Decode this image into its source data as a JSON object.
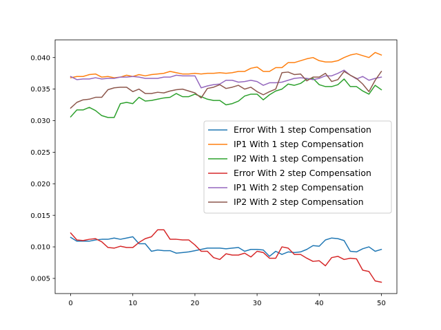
{
  "chart_data": {
    "type": "line",
    "title": "",
    "xlabel": "",
    "ylabel": "",
    "xlim": [
      -2.5,
      52.5
    ],
    "ylim": [
      0.0026,
      0.0428
    ],
    "xticks": [
      0,
      10,
      20,
      30,
      40,
      50
    ],
    "xtick_labels": [
      "0",
      "10",
      "20",
      "30",
      "40",
      "50"
    ],
    "yticks": [
      0.005,
      0.01,
      0.015,
      0.02,
      0.025,
      0.03,
      0.035,
      0.04
    ],
    "ytick_labels": [
      "0.005",
      "0.010",
      "0.015",
      "0.020",
      "0.025",
      "0.030",
      "0.035",
      "0.040"
    ],
    "grid": false,
    "legend_placement": "center-right",
    "x": [
      0,
      1,
      2,
      3,
      4,
      5,
      6,
      7,
      8,
      9,
      10,
      11,
      12,
      13,
      14,
      15,
      16,
      17,
      18,
      19,
      20,
      21,
      22,
      23,
      24,
      25,
      26,
      27,
      28,
      29,
      30,
      31,
      32,
      33,
      34,
      35,
      36,
      37,
      38,
      39,
      40,
      41,
      42,
      43,
      44,
      45,
      46,
      47,
      48,
      49,
      50
    ],
    "series": [
      {
        "name": "Error With 1 step Compensation",
        "color": "#1f77b4",
        "values": [
          0.0115,
          0.0109,
          0.0109,
          0.0109,
          0.0111,
          0.0112,
          0.0112,
          0.0114,
          0.0112,
          0.0114,
          0.0116,
          0.0105,
          0.0105,
          0.0093,
          0.0095,
          0.0094,
          0.0094,
          0.009,
          0.0091,
          0.0092,
          0.0094,
          0.0096,
          0.0098,
          0.0098,
          0.0098,
          0.0097,
          0.0098,
          0.0099,
          0.0093,
          0.0096,
          0.0096,
          0.0095,
          0.0085,
          0.0093,
          0.0088,
          0.0092,
          0.0091,
          0.0092,
          0.0096,
          0.0102,
          0.0101,
          0.0111,
          0.0114,
          0.0113,
          0.011,
          0.0093,
          0.0092,
          0.0097,
          0.01,
          0.0093,
          0.0096
        ]
      },
      {
        "name": "IP1 With 1 step Compensation",
        "color": "#ff7f0e",
        "values": [
          0.0368,
          0.037,
          0.037,
          0.0373,
          0.0374,
          0.0369,
          0.037,
          0.0368,
          0.0369,
          0.0372,
          0.037,
          0.0373,
          0.0371,
          0.0373,
          0.0374,
          0.0375,
          0.0378,
          0.0376,
          0.0374,
          0.0374,
          0.0375,
          0.0374,
          0.0375,
          0.0375,
          0.0376,
          0.0375,
          0.0376,
          0.0378,
          0.0378,
          0.0383,
          0.0385,
          0.0378,
          0.0378,
          0.0384,
          0.0384,
          0.0392,
          0.0392,
          0.0395,
          0.0398,
          0.04,
          0.0395,
          0.0393,
          0.0393,
          0.0395,
          0.04,
          0.0404,
          0.0406,
          0.0403,
          0.04,
          0.0408,
          0.0404
        ]
      },
      {
        "name": "IP2 With 1 step Compensation",
        "color": "#2ca02c",
        "values": [
          0.0306,
          0.0317,
          0.0317,
          0.0321,
          0.0316,
          0.0308,
          0.0305,
          0.0305,
          0.0327,
          0.0329,
          0.0327,
          0.0337,
          0.0331,
          0.0332,
          0.0334,
          0.0336,
          0.0337,
          0.0343,
          0.0338,
          0.0338,
          0.0342,
          0.0338,
          0.0334,
          0.0332,
          0.0332,
          0.0325,
          0.0327,
          0.0331,
          0.0339,
          0.0342,
          0.0342,
          0.0333,
          0.0341,
          0.0347,
          0.035,
          0.0358,
          0.0356,
          0.0359,
          0.0366,
          0.0367,
          0.0357,
          0.0354,
          0.0354,
          0.0357,
          0.0366,
          0.0354,
          0.0354,
          0.0347,
          0.0342,
          0.0356,
          0.0349
        ]
      },
      {
        "name": "Error With 2 step Compensation",
        "color": "#d62728",
        "values": [
          0.0122,
          0.0111,
          0.011,
          0.0112,
          0.0113,
          0.0108,
          0.0099,
          0.0098,
          0.0101,
          0.0099,
          0.0099,
          0.0107,
          0.0113,
          0.0116,
          0.0127,
          0.0127,
          0.0112,
          0.0112,
          0.0111,
          0.0111,
          0.0103,
          0.0093,
          0.0093,
          0.0083,
          0.008,
          0.0089,
          0.0087,
          0.0087,
          0.009,
          0.0084,
          0.0093,
          0.0091,
          0.0082,
          0.0082,
          0.01,
          0.0098,
          0.0088,
          0.0088,
          0.0082,
          0.0077,
          0.0078,
          0.007,
          0.0083,
          0.0085,
          0.008,
          0.0082,
          0.0081,
          0.0063,
          0.0061,
          0.0046,
          0.0044
        ]
      },
      {
        "name": "IP1 With 2 step Compensation",
        "color": "#9467bd",
        "values": [
          0.037,
          0.0365,
          0.0366,
          0.0366,
          0.0368,
          0.0366,
          0.0367,
          0.0367,
          0.0369,
          0.0369,
          0.037,
          0.0369,
          0.0367,
          0.0367,
          0.0367,
          0.0369,
          0.0369,
          0.0372,
          0.0371,
          0.0371,
          0.0371,
          0.0352,
          0.0355,
          0.0357,
          0.0358,
          0.0364,
          0.0364,
          0.0361,
          0.0362,
          0.0364,
          0.0362,
          0.0356,
          0.036,
          0.036,
          0.0361,
          0.0364,
          0.0367,
          0.0368,
          0.0367,
          0.0365,
          0.0367,
          0.0371,
          0.0371,
          0.0375,
          0.038,
          0.0372,
          0.0366,
          0.037,
          0.0364,
          0.0367,
          0.0369
        ]
      },
      {
        "name": "IP2 With 2 step Compensation",
        "color": "#8c564b",
        "values": [
          0.032,
          0.0329,
          0.0333,
          0.0334,
          0.0337,
          0.0337,
          0.0349,
          0.0352,
          0.0353,
          0.0353,
          0.0346,
          0.035,
          0.0343,
          0.0343,
          0.0345,
          0.0344,
          0.0347,
          0.0349,
          0.035,
          0.0347,
          0.0344,
          0.0336,
          0.0351,
          0.0353,
          0.0357,
          0.0351,
          0.0353,
          0.0356,
          0.035,
          0.0353,
          0.0346,
          0.0341,
          0.0346,
          0.035,
          0.0376,
          0.0377,
          0.0373,
          0.0374,
          0.0363,
          0.0369,
          0.0369,
          0.0375,
          0.0362,
          0.0365,
          0.0378,
          0.0372,
          0.0367,
          0.0358,
          0.0346,
          0.0364,
          0.0378
        ]
      }
    ]
  }
}
